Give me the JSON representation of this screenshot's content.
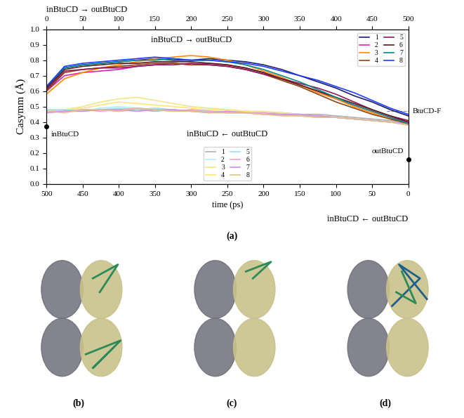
{
  "chart_data": {
    "type": "line",
    "x_label": "time (ps)",
    "x_label_right": "inBtuCD ← outBtuCD",
    "x2_label": "inBtuCD → outBtuCD",
    "y_label": "Casymm (Å)",
    "xlim": [
      500,
      0
    ],
    "xticks": [
      500,
      450,
      400,
      350,
      300,
      250,
      200,
      150,
      100,
      50,
      0
    ],
    "x2lim": [
      0,
      500
    ],
    "x2ticks": [
      0,
      50,
      100,
      150,
      200,
      250,
      300,
      350,
      400,
      450,
      500
    ],
    "ylim": [
      0.0,
      1.0
    ],
    "yticks": [
      0.0,
      0.1,
      0.2,
      0.3,
      0.4,
      0.5,
      0.6,
      0.7,
      0.8,
      0.9,
      1.0
    ],
    "legend": "upper right",
    "annotations": [
      {
        "text": "inBtuCD → outBtuCD",
        "axis": "x2",
        "x": 200,
        "y": 0.93
      },
      {
        "text": "inBtuCD ← outBtuCD",
        "axis": "x",
        "x": 250,
        "y": 0.32
      }
    ],
    "points": [
      {
        "label": "inBtuCD",
        "x": 500,
        "y": 0.37
      },
      {
        "label": "outBtuCD",
        "x": 0,
        "y": 0.16
      }
    ],
    "reference": {
      "label": "BtuCD-F",
      "x": 0,
      "y": 0.47
    },
    "series": [
      {
        "name": "1",
        "axis": "x2",
        "color": "#1c1c6e",
        "x": [
          0,
          25,
          50,
          75,
          100,
          125,
          150,
          175,
          200,
          225,
          250,
          275,
          300,
          325,
          350,
          375,
          400,
          425,
          450,
          475,
          500
        ],
        "values": [
          0.62,
          0.75,
          0.77,
          0.78,
          0.79,
          0.8,
          0.81,
          0.8,
          0.8,
          0.81,
          0.8,
          0.79,
          0.77,
          0.74,
          0.7,
          0.66,
          0.62,
          0.57,
          0.53,
          0.48,
          0.44
        ]
      },
      {
        "name": "2",
        "axis": "x2",
        "color": "#e020c0",
        "x": [
          0,
          25,
          50,
          75,
          100,
          125,
          150,
          175,
          200,
          225,
          250,
          275,
          300,
          325,
          350,
          375,
          400,
          425,
          450,
          475,
          500
        ],
        "values": [
          0.6,
          0.7,
          0.72,
          0.73,
          0.74,
          0.76,
          0.77,
          0.78,
          0.77,
          0.78,
          0.77,
          0.75,
          0.72,
          0.68,
          0.64,
          0.6,
          0.55,
          0.51,
          0.47,
          0.43,
          0.4
        ]
      },
      {
        "name": "3",
        "axis": "x2",
        "color": "#ff8c00",
        "x": [
          0,
          25,
          50,
          75,
          100,
          125,
          150,
          175,
          200,
          225,
          250,
          275,
          300,
          325,
          350,
          375,
          400,
          425,
          450,
          475,
          500
        ],
        "values": [
          0.58,
          0.68,
          0.72,
          0.75,
          0.77,
          0.79,
          0.81,
          0.82,
          0.83,
          0.82,
          0.8,
          0.77,
          0.73,
          0.69,
          0.64,
          0.59,
          0.55,
          0.5,
          0.46,
          0.42,
          0.39
        ]
      },
      {
        "name": "4",
        "axis": "x2",
        "color": "#8b4513",
        "x": [
          0,
          25,
          50,
          75,
          100,
          125,
          150,
          175,
          200,
          225,
          250,
          275,
          300,
          325,
          350,
          375,
          400,
          425,
          450,
          475,
          500
        ],
        "values": [
          0.6,
          0.72,
          0.74,
          0.75,
          0.76,
          0.77,
          0.78,
          0.78,
          0.77,
          0.77,
          0.76,
          0.74,
          0.71,
          0.67,
          0.63,
          0.58,
          0.53,
          0.49,
          0.45,
          0.42,
          0.39
        ]
      },
      {
        "name": "5",
        "axis": "x2",
        "color": "#8b1a5a",
        "x": [
          0,
          25,
          50,
          75,
          100,
          125,
          150,
          175,
          200,
          225,
          250,
          275,
          300,
          325,
          350,
          375,
          400,
          425,
          450,
          475,
          500
        ],
        "values": [
          0.61,
          0.73,
          0.74,
          0.75,
          0.75,
          0.76,
          0.77,
          0.77,
          0.78,
          0.77,
          0.76,
          0.74,
          0.71,
          0.68,
          0.65,
          0.62,
          0.58,
          0.53,
          0.48,
          0.44,
          0.41
        ]
      },
      {
        "name": "6",
        "axis": "x2",
        "color": "#5a1a1a",
        "x": [
          0,
          25,
          50,
          75,
          100,
          125,
          150,
          175,
          200,
          225,
          250,
          275,
          300,
          325,
          350,
          375,
          400,
          425,
          450,
          475,
          500
        ],
        "values": [
          0.62,
          0.74,
          0.76,
          0.77,
          0.78,
          0.78,
          0.79,
          0.79,
          0.79,
          0.78,
          0.77,
          0.75,
          0.72,
          0.68,
          0.64,
          0.6,
          0.56,
          0.52,
          0.48,
          0.44,
          0.4
        ]
      },
      {
        "name": "7",
        "axis": "x2",
        "color": "#008b8b",
        "x": [
          0,
          25,
          50,
          75,
          100,
          125,
          150,
          175,
          200,
          225,
          250,
          275,
          300,
          325,
          350,
          375,
          400,
          425,
          450,
          475,
          500
        ],
        "values": [
          0.63,
          0.75,
          0.77,
          0.78,
          0.79,
          0.8,
          0.8,
          0.81,
          0.8,
          0.8,
          0.79,
          0.77,
          0.74,
          0.7,
          0.66,
          0.61,
          0.56,
          0.51,
          0.47,
          0.43,
          0.39
        ]
      },
      {
        "name": "8",
        "axis": "x2",
        "color": "#1e3cff",
        "x": [
          0,
          25,
          50,
          75,
          100,
          125,
          150,
          175,
          200,
          225,
          250,
          275,
          300,
          325,
          350,
          375,
          400,
          425,
          450,
          475,
          500
        ],
        "values": [
          0.63,
          0.76,
          0.78,
          0.79,
          0.8,
          0.81,
          0.82,
          0.81,
          0.8,
          0.8,
          0.79,
          0.78,
          0.76,
          0.73,
          0.7,
          0.67,
          0.63,
          0.59,
          0.54,
          0.49,
          0.45
        ]
      },
      {
        "name": "1",
        "axis": "x",
        "color": "#b0b0b0",
        "x": [
          500,
          475,
          450,
          425,
          400,
          375,
          350,
          325,
          300,
          275,
          250,
          225,
          200,
          175,
          150,
          125,
          100,
          75,
          50,
          25,
          0
        ],
        "values": [
          0.46,
          0.47,
          0.48,
          0.48,
          0.47,
          0.48,
          0.47,
          0.48,
          0.47,
          0.47,
          0.46,
          0.47,
          0.46,
          0.46,
          0.45,
          0.45,
          0.44,
          0.43,
          0.42,
          0.41,
          0.4
        ]
      },
      {
        "name": "2",
        "axis": "x",
        "color": "#b0f0f0",
        "x": [
          500,
          475,
          450,
          425,
          400,
          375,
          350,
          325,
          300,
          275,
          250,
          225,
          200,
          175,
          150,
          125,
          100,
          75,
          50,
          25,
          0
        ],
        "values": [
          0.47,
          0.48,
          0.47,
          0.49,
          0.5,
          0.49,
          0.48,
          0.47,
          0.48,
          0.47,
          0.47,
          0.46,
          0.46,
          0.45,
          0.45,
          0.44,
          0.43,
          0.42,
          0.41,
          0.4,
          0.39
        ]
      },
      {
        "name": "3",
        "axis": "x",
        "color": "#f0e68c",
        "x": [
          500,
          475,
          450,
          425,
          400,
          375,
          350,
          325,
          300,
          275,
          250,
          225,
          200,
          175,
          150,
          125,
          100,
          75,
          50,
          25,
          0
        ],
        "values": [
          0.47,
          0.48,
          0.5,
          0.53,
          0.55,
          0.56,
          0.54,
          0.52,
          0.5,
          0.49,
          0.48,
          0.47,
          0.47,
          0.46,
          0.45,
          0.44,
          0.43,
          0.42,
          0.41,
          0.4,
          0.39
        ]
      },
      {
        "name": "4",
        "axis": "x",
        "color": "#ffe680",
        "x": [
          500,
          475,
          450,
          425,
          400,
          375,
          350,
          325,
          300,
          275,
          250,
          225,
          200,
          175,
          150,
          125,
          100,
          75,
          50,
          25,
          0
        ],
        "values": [
          0.46,
          0.48,
          0.49,
          0.51,
          0.53,
          0.52,
          0.51,
          0.5,
          0.49,
          0.48,
          0.48,
          0.47,
          0.46,
          0.45,
          0.44,
          0.44,
          0.43,
          0.42,
          0.41,
          0.4,
          0.39
        ]
      },
      {
        "name": "5",
        "axis": "x",
        "color": "#a0e0e8",
        "x": [
          500,
          475,
          450,
          425,
          400,
          375,
          350,
          325,
          300,
          275,
          250,
          225,
          200,
          175,
          150,
          125,
          100,
          75,
          50,
          25,
          0
        ],
        "values": [
          0.48,
          0.48,
          0.47,
          0.48,
          0.49,
          0.48,
          0.49,
          0.48,
          0.47,
          0.47,
          0.46,
          0.46,
          0.45,
          0.45,
          0.44,
          0.43,
          0.43,
          0.42,
          0.41,
          0.4,
          0.38
        ]
      },
      {
        "name": "6",
        "axis": "x",
        "color": "#f0a0d0",
        "x": [
          500,
          475,
          450,
          425,
          400,
          375,
          350,
          325,
          300,
          275,
          250,
          225,
          200,
          175,
          150,
          125,
          100,
          75,
          50,
          25,
          0
        ],
        "values": [
          0.47,
          0.47,
          0.48,
          0.47,
          0.48,
          0.49,
          0.48,
          0.47,
          0.48,
          0.47,
          0.46,
          0.46,
          0.46,
          0.45,
          0.44,
          0.44,
          0.43,
          0.42,
          0.41,
          0.4,
          0.39
        ]
      },
      {
        "name": "7",
        "axis": "x",
        "color": "#d090e0",
        "x": [
          500,
          475,
          450,
          425,
          400,
          375,
          350,
          325,
          300,
          275,
          250,
          225,
          200,
          175,
          150,
          125,
          100,
          75,
          50,
          25,
          0
        ],
        "values": [
          0.46,
          0.47,
          0.47,
          0.48,
          0.48,
          0.47,
          0.48,
          0.48,
          0.47,
          0.46,
          0.47,
          0.46,
          0.45,
          0.45,
          0.45,
          0.44,
          0.43,
          0.42,
          0.41,
          0.4,
          0.39
        ]
      },
      {
        "name": "8",
        "axis": "x",
        "color": "#e0c090",
        "x": [
          500,
          475,
          450,
          425,
          400,
          375,
          350,
          325,
          300,
          275,
          250,
          225,
          200,
          175,
          150,
          125,
          100,
          75,
          50,
          25,
          0
        ],
        "values": [
          0.47,
          0.46,
          0.48,
          0.48,
          0.47,
          0.49,
          0.48,
          0.47,
          0.47,
          0.46,
          0.46,
          0.46,
          0.45,
          0.44,
          0.44,
          0.43,
          0.43,
          0.42,
          0.41,
          0.4,
          0.38
        ]
      }
    ]
  },
  "panel_labels": [
    "(a)",
    "(b)",
    "(c)",
    "(d)"
  ]
}
